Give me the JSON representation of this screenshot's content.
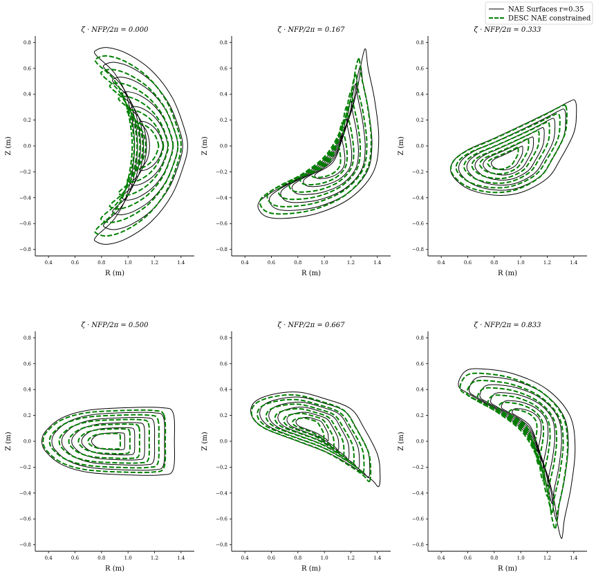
{
  "chart_data": {
    "type": "line",
    "legend": {
      "placement": "top-right",
      "entries": [
        {
          "label": "NAE Surfaces r=0.35",
          "color": "#000000",
          "style": "solid"
        },
        {
          "label": "DESC NAE constrained",
          "color": "#008000",
          "style": "dashed"
        }
      ]
    },
    "colors": {
      "nae": "#000000",
      "desc": "#008000"
    },
    "xlim": [
      0.3,
      1.5
    ],
    "ylim": [
      -0.85,
      0.85
    ],
    "xticks": [
      0.4,
      0.6,
      0.8,
      1.0,
      1.2,
      1.4
    ],
    "yticks": [
      0.8,
      0.6,
      0.4,
      0.2,
      0.0,
      -0.2,
      -0.4,
      -0.6,
      -0.8
    ],
    "xtick_labels": [
      "0.4",
      "0.6",
      "0.8",
      "1.0",
      "1.2",
      "1.4"
    ],
    "ytick_labels": [
      "0.8",
      "0.6",
      "0.4",
      "0.2",
      "0.0",
      "−0.2",
      "−0.4",
      "−0.6",
      "−0.8"
    ],
    "xlabel": "R (m)",
    "ylabel": "Z (m)",
    "grid": false,
    "panels": [
      {
        "title": "ζ · NFP/2π = 0.000",
        "shape": "crescent",
        "axis": [
          1.2,
          0.0
        ],
        "outer_surface": [
          [
            1.45,
            0.0
          ],
          [
            1.42,
            0.15
          ],
          [
            1.33,
            0.38
          ],
          [
            1.18,
            0.58
          ],
          [
            1.0,
            0.71
          ],
          [
            0.85,
            0.76
          ],
          [
            0.76,
            0.74
          ],
          [
            0.76,
            0.7
          ],
          [
            0.9,
            0.56
          ],
          [
            1.0,
            0.35
          ],
          [
            1.05,
            0.0
          ],
          [
            1.0,
            -0.35
          ],
          [
            0.9,
            -0.56
          ],
          [
            0.76,
            -0.7
          ],
          [
            0.76,
            -0.74
          ],
          [
            0.85,
            -0.76
          ],
          [
            1.0,
            -0.71
          ],
          [
            1.18,
            -0.58
          ],
          [
            1.33,
            -0.38
          ],
          [
            1.42,
            -0.15
          ]
        ]
      },
      {
        "title": "ζ · NFP/2π = 0.167",
        "shape": "tilted-banana",
        "axis": [
          1.07,
          -0.15
        ],
        "outer_surface": [
          [
            1.31,
            0.75
          ],
          [
            1.33,
            0.6
          ],
          [
            1.38,
            0.35
          ],
          [
            1.41,
            0.05
          ],
          [
            1.37,
            -0.2
          ],
          [
            1.2,
            -0.4
          ],
          [
            0.95,
            -0.52
          ],
          [
            0.7,
            -0.56
          ],
          [
            0.55,
            -0.54
          ],
          [
            0.5,
            -0.45
          ],
          [
            0.6,
            -0.36
          ],
          [
            0.85,
            -0.22
          ],
          [
            1.05,
            -0.05
          ],
          [
            1.18,
            0.2
          ],
          [
            1.25,
            0.45
          ],
          [
            1.28,
            0.65
          ]
        ]
      },
      {
        "title": "ζ · NFP/2π = 0.333",
        "shape": "tilted-ellipse",
        "axis": [
          0.88,
          -0.12
        ],
        "outer_surface": [
          [
            1.41,
            0.35
          ],
          [
            1.42,
            0.25
          ],
          [
            1.4,
            0.1
          ],
          [
            1.3,
            -0.1
          ],
          [
            1.2,
            -0.25
          ],
          [
            1.0,
            -0.36
          ],
          [
            0.8,
            -0.38
          ],
          [
            0.6,
            -0.33
          ],
          [
            0.48,
            -0.22
          ],
          [
            0.49,
            -0.12
          ],
          [
            0.6,
            -0.03
          ],
          [
            0.8,
            0.06
          ],
          [
            1.05,
            0.18
          ],
          [
            1.25,
            0.28
          ],
          [
            1.36,
            0.34
          ]
        ]
      },
      {
        "title": "ζ · NFP/2π = 0.500",
        "shape": "d-shape",
        "axis": [
          0.85,
          0.0
        ],
        "outer_surface": [
          [
            1.34,
            0.22
          ],
          [
            1.35,
            0.0
          ],
          [
            1.34,
            -0.22
          ],
          [
            1.25,
            -0.26
          ],
          [
            1.0,
            -0.26
          ],
          [
            0.7,
            -0.24
          ],
          [
            0.5,
            -0.18
          ],
          [
            0.38,
            -0.08
          ],
          [
            0.35,
            0.0
          ],
          [
            0.38,
            0.08
          ],
          [
            0.5,
            0.18
          ],
          [
            0.7,
            0.24
          ],
          [
            1.0,
            0.26
          ],
          [
            1.25,
            0.26
          ]
        ]
      },
      {
        "title": "ζ · NFP/2π = 0.667",
        "shape": "tilted-ellipse",
        "axis": [
          0.9,
          0.12
        ],
        "outer_surface": [
          [
            1.41,
            -0.35
          ],
          [
            1.42,
            -0.25
          ],
          [
            1.4,
            -0.1
          ],
          [
            1.3,
            0.1
          ],
          [
            1.2,
            0.25
          ],
          [
            1.0,
            0.33
          ],
          [
            0.8,
            0.38
          ],
          [
            0.6,
            0.36
          ],
          [
            0.47,
            0.3
          ],
          [
            0.45,
            0.2
          ],
          [
            0.55,
            0.1
          ],
          [
            0.8,
            0.0
          ],
          [
            1.05,
            -0.1
          ],
          [
            1.25,
            -0.22
          ],
          [
            1.36,
            -0.3
          ]
        ]
      },
      {
        "title": "ζ · NFP/2π = 0.833",
        "shape": "tilted-banana",
        "axis": [
          1.07,
          0.15
        ],
        "outer_surface": [
          [
            1.31,
            -0.75
          ],
          [
            1.33,
            -0.6
          ],
          [
            1.38,
            -0.35
          ],
          [
            1.41,
            -0.05
          ],
          [
            1.37,
            0.2
          ],
          [
            1.2,
            0.4
          ],
          [
            0.95,
            0.52
          ],
          [
            0.7,
            0.56
          ],
          [
            0.58,
            0.54
          ],
          [
            0.53,
            0.43
          ],
          [
            0.62,
            0.36
          ],
          [
            0.85,
            0.22
          ],
          [
            1.05,
            0.05
          ],
          [
            1.18,
            -0.2
          ],
          [
            1.25,
            -0.45
          ],
          [
            1.28,
            -0.65
          ]
        ]
      }
    ]
  }
}
